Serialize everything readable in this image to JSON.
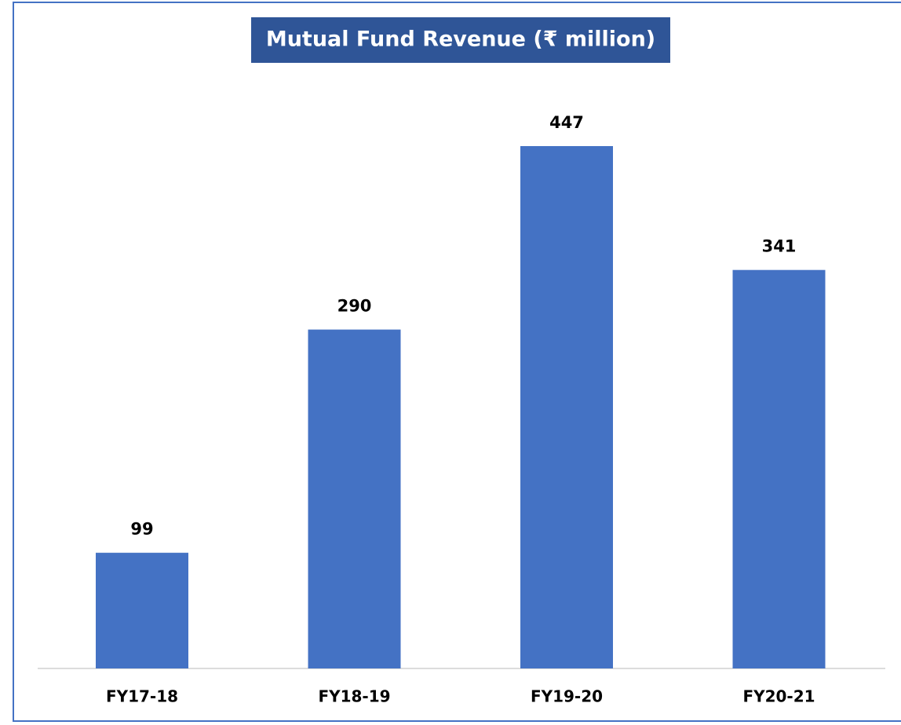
{
  "chart_data": {
    "type": "bar",
    "title": "Mutual Fund Revenue (₹ million)",
    "categories": [
      "FY17-18",
      "FY18-19",
      "FY19-20",
      "FY20-21"
    ],
    "values": [
      99,
      290,
      447,
      341
    ],
    "color": "#4472c4"
  }
}
